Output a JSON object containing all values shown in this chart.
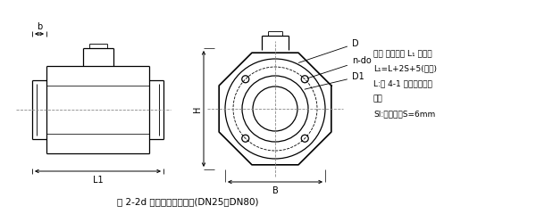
{
  "bg_color": "#ffffff",
  "line_color": "#000000",
  "dash_color": "#555555",
  "label_b": "b",
  "label_L1": "L1",
  "label_H": "H",
  "label_B": "B",
  "label_D": "D",
  "label_ndo": "n-do",
  "label_D1": "D1",
  "note_lines": [
    "注： 仪表长度 L₁ 含葟里",
    "L₁=L+2S+5(允差)",
    "L:表 4-1 中仪表理论长",
    "度。",
    "Sl:接地环，S=6mm"
  ],
  "fig_title": "图 2-2d 一体型电磁流量计(DN25～DN80)"
}
